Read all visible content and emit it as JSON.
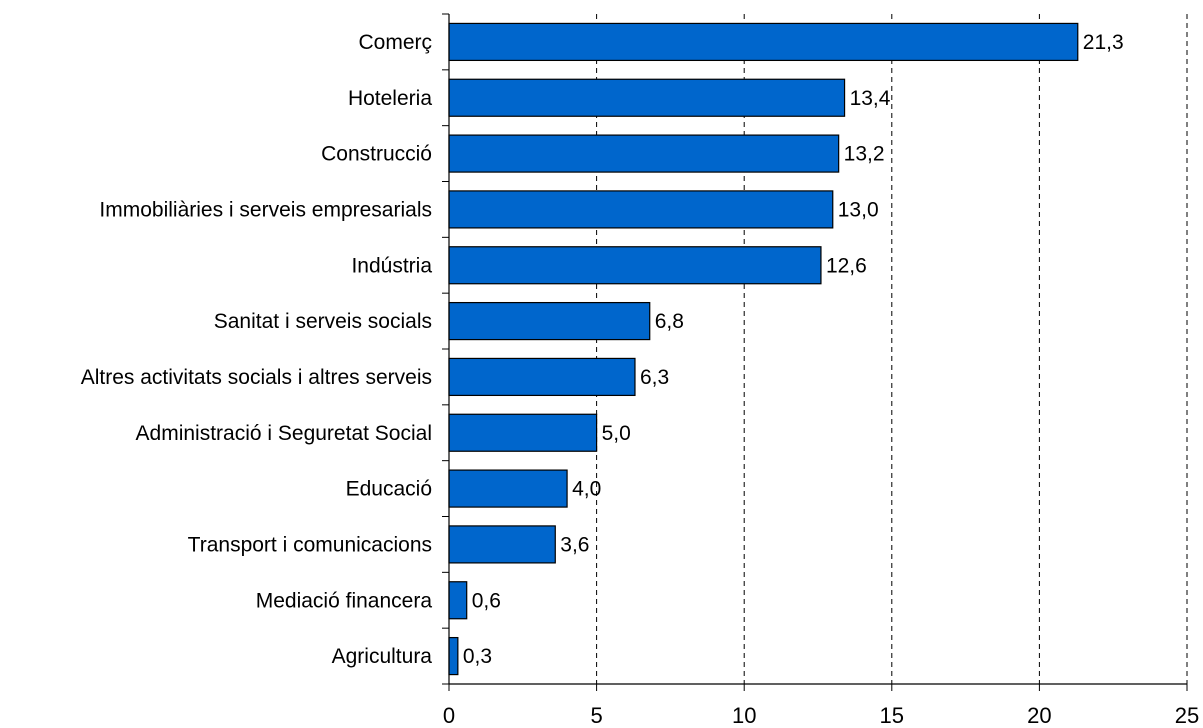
{
  "chart_data": {
    "type": "bar",
    "orientation": "horizontal",
    "categories": [
      "Comerç",
      "Hoteleria",
      "Construcció",
      "Immobiliàries i serveis empresarials",
      "Indústria",
      "Sanitat i serveis socials",
      "Altres activitats socials i altres serveis",
      "Administració i Seguretat Social",
      "Educació",
      "Transport i comunicacions",
      "Mediació financera",
      "Agricultura"
    ],
    "values": [
      21.3,
      13.4,
      13.2,
      13.0,
      12.6,
      6.8,
      6.3,
      5.0,
      4.0,
      3.6,
      0.6,
      0.3
    ],
    "value_labels": [
      "21,3",
      "13,4",
      "13,2",
      "13,0",
      "12,6",
      "6,8",
      "6,3",
      "5,0",
      "4,0",
      "3,6",
      "0,6",
      "0,3"
    ],
    "xlim": [
      0,
      25
    ],
    "xticks": [
      0,
      5,
      10,
      15,
      20,
      25
    ],
    "xtick_labels": [
      "0",
      "5",
      "10",
      "15",
      "20",
      "25"
    ],
    "grid": "vertical-dashed",
    "bar_color": "#0066CC",
    "bar_outline": "#000000"
  }
}
